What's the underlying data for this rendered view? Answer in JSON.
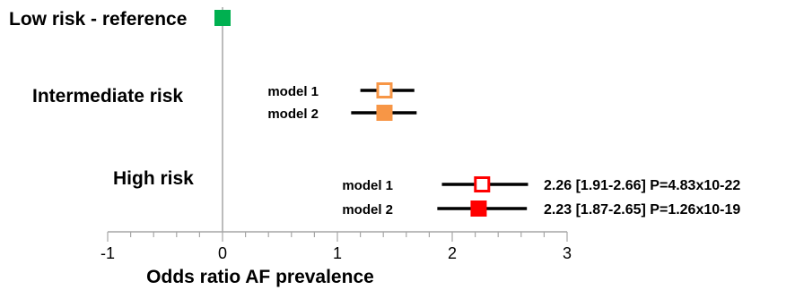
{
  "chart_data": {
    "type": "forest",
    "xlabel": "Odds ratio AF prevalence",
    "xlim": [
      -1,
      3
    ],
    "ticks": [
      "-1",
      "0",
      "1",
      "2",
      "3"
    ],
    "reference_line": 0,
    "groups": [
      {
        "label": "Low risk - reference",
        "rows": [
          {
            "model": "",
            "estimate": 0,
            "lower": null,
            "upper": null,
            "stat": "",
            "marker": "filled",
            "color": "#00b050"
          }
        ]
      },
      {
        "label": "Intermediate risk",
        "rows": [
          {
            "model": "model 1",
            "estimate": 1.41,
            "lower": 1.2,
            "upper": 1.67,
            "stat": "",
            "marker": "open",
            "color": "#f79646"
          },
          {
            "model": "model 2",
            "estimate": 1.41,
            "lower": 1.12,
            "upper": 1.69,
            "stat": "",
            "marker": "filled",
            "color": "#f79646"
          }
        ]
      },
      {
        "label": "High risk",
        "rows": [
          {
            "model": "model 1",
            "estimate": 2.26,
            "lower": 1.91,
            "upper": 2.66,
            "stat": "2.26 [1.91-2.66] P=4.83x10-22",
            "marker": "open",
            "color": "#ff0000"
          },
          {
            "model": "model 2",
            "estimate": 2.23,
            "lower": 1.87,
            "upper": 2.65,
            "stat": "2.23 [1.87-2.65] P=1.26x10-19",
            "marker": "filled",
            "color": "#ff0000"
          }
        ]
      }
    ]
  }
}
